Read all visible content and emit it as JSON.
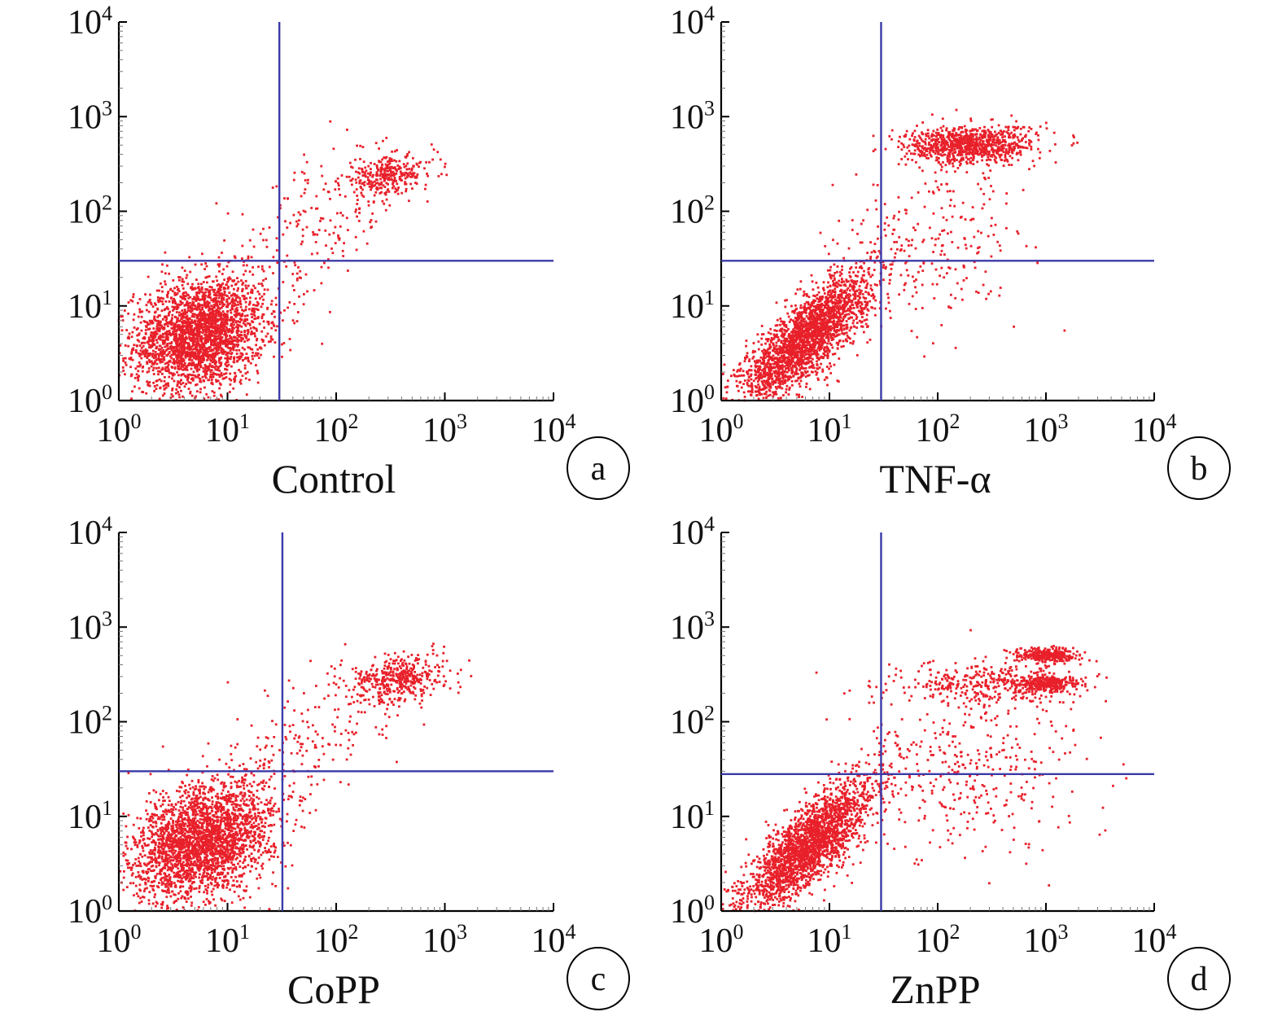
{
  "figure": {
    "colors": {
      "axis": "#000000",
      "gate": "#3a3aa8",
      "dots": "#e8202a",
      "background": "#ffffff"
    }
  },
  "chart_data": [
    {
      "type": "scatter",
      "panel_label": "a",
      "title": "Control",
      "xlabel": "",
      "ylabel": "",
      "x_scale": "log",
      "y_scale": "log",
      "xlim": [
        1,
        10000
      ],
      "ylim": [
        1,
        10000
      ],
      "x_ticks": [
        {
          "base": "10",
          "exp": "0"
        },
        {
          "base": "10",
          "exp": "1"
        },
        {
          "base": "10",
          "exp": "2"
        },
        {
          "base": "10",
          "exp": "3"
        },
        {
          "base": "10",
          "exp": "4"
        }
      ],
      "y_ticks": [
        {
          "base": "10",
          "exp": "0"
        },
        {
          "base": "10",
          "exp": "1"
        },
        {
          "base": "10",
          "exp": "2"
        },
        {
          "base": "10",
          "exp": "3"
        },
        {
          "base": "10",
          "exp": "4"
        }
      ],
      "quadrant_gate": {
        "x": 30,
        "y": 30
      },
      "populations": [
        {
          "center": [
            5.5,
            5
          ],
          "spread_log": [
            0.3,
            0.3
          ],
          "correlation": 0.2,
          "count": 2600
        },
        {
          "center": [
            300,
            240
          ],
          "spread_log": [
            0.22,
            0.1
          ],
          "correlation": 0.3,
          "count": 300
        },
        {
          "center": [
            60,
            60
          ],
          "spread_log": [
            0.45,
            0.45
          ],
          "correlation": 0.6,
          "count": 220
        }
      ]
    },
    {
      "type": "scatter",
      "panel_label": "b",
      "title": "TNF-α",
      "xlabel": "",
      "ylabel": "",
      "x_scale": "log",
      "y_scale": "log",
      "xlim": [
        1,
        10000
      ],
      "ylim": [
        1,
        10000
      ],
      "x_ticks": [
        {
          "base": "10",
          "exp": "0"
        },
        {
          "base": "10",
          "exp": "1"
        },
        {
          "base": "10",
          "exp": "2"
        },
        {
          "base": "10",
          "exp": "3"
        },
        {
          "base": "10",
          "exp": "4"
        }
      ],
      "y_ticks": [
        {
          "base": "10",
          "exp": "0"
        },
        {
          "base": "10",
          "exp": "1"
        },
        {
          "base": "10",
          "exp": "2"
        },
        {
          "base": "10",
          "exp": "3"
        },
        {
          "base": "10",
          "exp": "4"
        }
      ],
      "quadrant_gate": {
        "x": 30,
        "y": 30
      },
      "populations": [
        {
          "center": [
            6,
            4.5
          ],
          "spread_log": [
            0.3,
            0.35
          ],
          "correlation": 0.8,
          "count": 2400
        },
        {
          "center": [
            200,
            500
          ],
          "spread_log": [
            0.3,
            0.1
          ],
          "correlation": 0.1,
          "count": 900
        },
        {
          "center": [
            90,
            40
          ],
          "spread_log": [
            0.45,
            0.45
          ],
          "correlation": 0.3,
          "count": 260
        }
      ]
    },
    {
      "type": "scatter",
      "panel_label": "c",
      "title": "CoPP",
      "xlabel": "",
      "ylabel": "",
      "x_scale": "log",
      "y_scale": "log",
      "xlim": [
        1,
        10000
      ],
      "ylim": [
        1,
        10000
      ],
      "x_ticks": [
        {
          "base": "10",
          "exp": "0"
        },
        {
          "base": "10",
          "exp": "1"
        },
        {
          "base": "10",
          "exp": "2"
        },
        {
          "base": "10",
          "exp": "3"
        },
        {
          "base": "10",
          "exp": "4"
        }
      ],
      "y_ticks": [
        {
          "base": "10",
          "exp": "0"
        },
        {
          "base": "10",
          "exp": "1"
        },
        {
          "base": "10",
          "exp": "2"
        },
        {
          "base": "10",
          "exp": "3"
        },
        {
          "base": "10",
          "exp": "4"
        }
      ],
      "quadrant_gate": {
        "x": 32,
        "y": 30
      },
      "populations": [
        {
          "center": [
            6,
            5.5
          ],
          "spread_log": [
            0.32,
            0.3
          ],
          "correlation": 0.3,
          "count": 2600
        },
        {
          "center": [
            380,
            280
          ],
          "spread_log": [
            0.22,
            0.13
          ],
          "correlation": 0.3,
          "count": 420
        },
        {
          "center": [
            50,
            60
          ],
          "spread_log": [
            0.45,
            0.45
          ],
          "correlation": 0.6,
          "count": 200
        }
      ]
    },
    {
      "type": "scatter",
      "panel_label": "d",
      "title": "ZnPP",
      "xlabel": "",
      "ylabel": "",
      "x_scale": "log",
      "y_scale": "log",
      "xlim": [
        1,
        10000
      ],
      "ylim": [
        1,
        10000
      ],
      "x_ticks": [
        {
          "base": "10",
          "exp": "0"
        },
        {
          "base": "10",
          "exp": "1"
        },
        {
          "base": "10",
          "exp": "2"
        },
        {
          "base": "10",
          "exp": "3"
        },
        {
          "base": "10",
          "exp": "4"
        }
      ],
      "y_ticks": [
        {
          "base": "10",
          "exp": "0"
        },
        {
          "base": "10",
          "exp": "1"
        },
        {
          "base": "10",
          "exp": "2"
        },
        {
          "base": "10",
          "exp": "3"
        },
        {
          "base": "10",
          "exp": "4"
        }
      ],
      "quadrant_gate": {
        "x": 30,
        "y": 28
      },
      "populations": [
        {
          "center": [
            6.5,
            5
          ],
          "spread_log": [
            0.3,
            0.35
          ],
          "correlation": 0.8,
          "count": 2300
        },
        {
          "center": [
            1000,
            500
          ],
          "spread_log": [
            0.15,
            0.04
          ],
          "correlation": 0.0,
          "count": 300
        },
        {
          "center": [
            1000,
            250
          ],
          "spread_log": [
            0.15,
            0.04
          ],
          "correlation": 0.0,
          "count": 300
        },
        {
          "center": [
            300,
            250
          ],
          "spread_log": [
            0.45,
            0.12
          ],
          "correlation": 0.0,
          "count": 350
        },
        {
          "center": [
            200,
            30
          ],
          "spread_log": [
            0.55,
            0.45
          ],
          "correlation": 0.2,
          "count": 380
        }
      ]
    }
  ]
}
